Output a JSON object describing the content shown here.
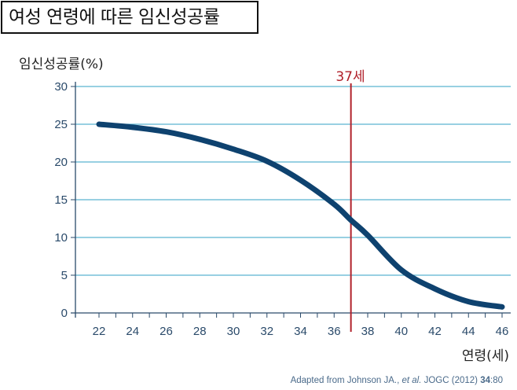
{
  "title": "여성 연령에 따른 임신성공률",
  "source": {
    "prefix": "Adapted from Johnson JA., ",
    "italic": "et al.",
    "middle": " JOGC (2012) ",
    "bold": "34",
    "suffix": ":80"
  },
  "chart_data": {
    "type": "line",
    "title": "여성 연령에 따른 임신성공률",
    "xlabel": "연령(세)",
    "ylabel": "임신성공률(%)",
    "xlim": [
      22,
      46
    ],
    "ylim": [
      0,
      30
    ],
    "xticks": [
      22,
      24,
      26,
      28,
      30,
      32,
      34,
      36,
      38,
      40,
      42,
      44,
      46
    ],
    "yticks": [
      0,
      5,
      10,
      15,
      20,
      25,
      30
    ],
    "grid": "horizontal",
    "x": [
      22,
      24,
      26,
      28,
      30,
      32,
      34,
      36,
      37,
      38,
      40,
      42,
      44,
      46
    ],
    "values": [
      25,
      24.6,
      24,
      23,
      21.7,
      20.1,
      17.6,
      14.4,
      12.3,
      10.3,
      5.7,
      3.2,
      1.5,
      0.8
    ],
    "annotation": {
      "x": 37,
      "label": "37세"
    },
    "colors": {
      "line": "#0e426f",
      "grid": "#5bb3d0",
      "annotation": "#b0202a",
      "axis": "#2a4a6a"
    }
  }
}
